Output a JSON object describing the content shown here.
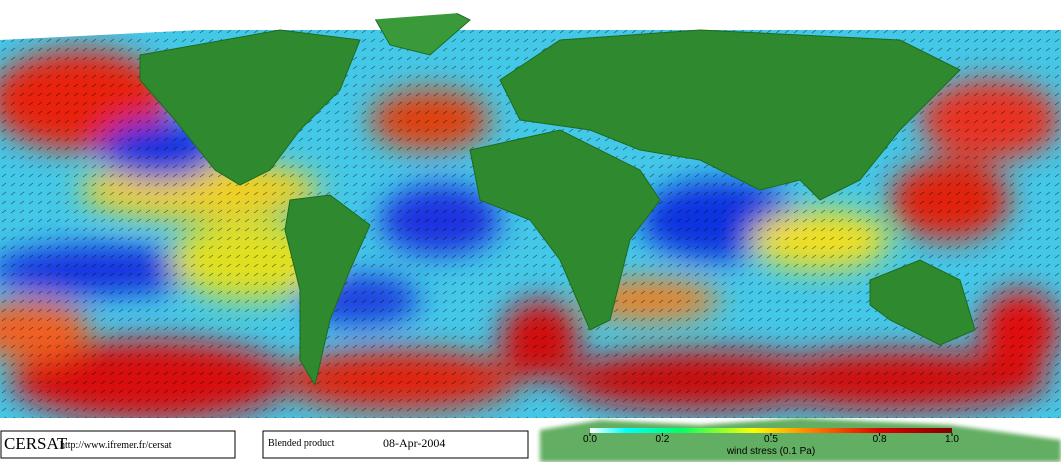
{
  "footer": {
    "brand": "CERSAT",
    "url": "http://www.ifremer.fr/cersat",
    "product": "Blended product",
    "date": "08-Apr-2004"
  },
  "colorbar": {
    "label": "wind stress (0.1 Pa)",
    "range": [
      0,
      1
    ],
    "ticks": [
      {
        "value": 0,
        "label": "0.0"
      },
      0.2,
      0.5,
      0.8,
      {
        "value": 1,
        "label": "1.0"
      }
    ]
  }
}
